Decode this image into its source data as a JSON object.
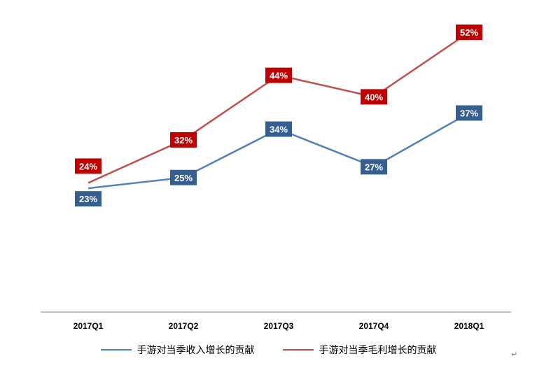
{
  "chart_data": {
    "type": "line",
    "categories": [
      "2017Q1",
      "2017Q2",
      "2017Q3",
      "2017Q4",
      "2018Q1"
    ],
    "series": [
      {
        "name": "手游对当季收入增长的贡献",
        "values": [
          23,
          25,
          34,
          27,
          37
        ],
        "labels": [
          "23%",
          "25%",
          "34%",
          "27%",
          "37%"
        ],
        "color": "#4f81bd",
        "label_bg": "#365f91"
      },
      {
        "name": "手游对当季毛利增长的贡献",
        "values": [
          24,
          32,
          44,
          40,
          52
        ],
        "labels": [
          "24%",
          "32%",
          "44%",
          "40%",
          "52%"
        ],
        "color": "#c0504d",
        "label_bg": "#c00000"
      }
    ],
    "ylim": [
      0,
      58
    ],
    "grid": false,
    "legend": "bottom"
  },
  "corner_mark": "↵"
}
